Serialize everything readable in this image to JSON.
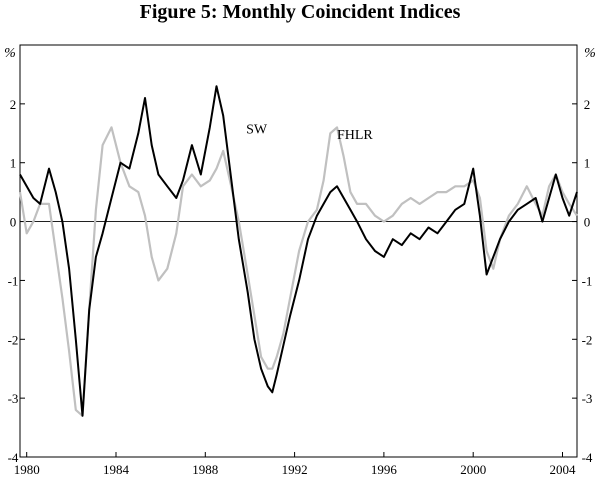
{
  "chart_data": {
    "type": "line",
    "title": "Figure 5: Monthly Coincident Indices",
    "ylabel_left": "%",
    "ylabel_right": "%",
    "ylim": [
      -4,
      3
    ],
    "yticks": [
      "2",
      "1",
      "0",
      "-1",
      "-2",
      "-3",
      "-4"
    ],
    "ytick_values": [
      2,
      1,
      0,
      -1,
      -2,
      -3,
      -4
    ],
    "xlim": [
      1979.7,
      2004.65
    ],
    "xticks": [
      "1980",
      "1984",
      "1988",
      "1992",
      "1996",
      "2000",
      "2004"
    ],
    "xtick_values": [
      1980,
      1984,
      1988,
      1992,
      1996,
      2000,
      2004
    ],
    "zero_line": true,
    "series": [
      {
        "name": "SW",
        "color": "#000000",
        "x": [
          1979.7,
          1980.0,
          1980.3,
          1980.6,
          1981.0,
          1981.3,
          1981.6,
          1981.9,
          1982.2,
          1982.5,
          1982.8,
          1983.1,
          1983.4,
          1983.8,
          1984.2,
          1984.6,
          1985.0,
          1985.3,
          1985.6,
          1985.9,
          1986.3,
          1986.7,
          1987.0,
          1987.4,
          1987.8,
          1988.2,
          1988.5,
          1988.8,
          1989.1,
          1989.5,
          1989.9,
          1990.2,
          1990.5,
          1990.8,
          1991.0,
          1991.2,
          1991.5,
          1991.8,
          1992.2,
          1992.6,
          1993.0,
          1993.3,
          1993.6,
          1993.9,
          1994.2,
          1994.5,
          1994.8,
          1995.2,
          1995.6,
          1996.0,
          1996.4,
          1996.8,
          1997.2,
          1997.6,
          1998.0,
          1998.4,
          1998.8,
          1999.2,
          1999.6,
          2000.0,
          2000.3,
          2000.6,
          2000.9,
          2001.2,
          2001.6,
          2002.0,
          2002.4,
          2002.8,
          2003.1,
          2003.4,
          2003.7,
          2004.0,
          2004.3,
          2004.65
        ],
        "values": [
          0.8,
          0.6,
          0.4,
          0.3,
          0.9,
          0.5,
          0.0,
          -0.8,
          -2.0,
          -3.3,
          -1.5,
          -0.6,
          -0.2,
          0.4,
          1.0,
          0.9,
          1.5,
          2.1,
          1.3,
          0.8,
          0.6,
          0.4,
          0.7,
          1.3,
          0.8,
          1.6,
          2.3,
          1.8,
          0.9,
          -0.3,
          -1.2,
          -2.0,
          -2.5,
          -2.8,
          -2.9,
          -2.6,
          -2.1,
          -1.6,
          -1.0,
          -0.3,
          0.1,
          0.3,
          0.5,
          0.6,
          0.4,
          0.2,
          0.0,
          -0.3,
          -0.5,
          -0.6,
          -0.3,
          -0.4,
          -0.2,
          -0.3,
          -0.1,
          -0.2,
          0.0,
          0.2,
          0.3,
          0.9,
          0.1,
          -0.9,
          -0.6,
          -0.3,
          0.0,
          0.2,
          0.3,
          0.4,
          0.0,
          0.4,
          0.8,
          0.4,
          0.1,
          0.5
        ]
      },
      {
        "name": "FHLR",
        "color": "#c0c0c0",
        "x": [
          1979.7,
          1980.0,
          1980.3,
          1980.6,
          1981.0,
          1981.3,
          1981.6,
          1981.9,
          1982.2,
          1982.5,
          1982.8,
          1983.1,
          1983.4,
          1983.8,
          1984.2,
          1984.6,
          1985.0,
          1985.3,
          1985.6,
          1985.9,
          1986.3,
          1986.7,
          1987.0,
          1987.4,
          1987.8,
          1988.2,
          1988.5,
          1988.8,
          1989.1,
          1989.5,
          1989.9,
          1990.2,
          1990.5,
          1990.8,
          1991.0,
          1991.2,
          1991.5,
          1991.8,
          1992.2,
          1992.6,
          1993.0,
          1993.3,
          1993.6,
          1993.9,
          1994.2,
          1994.5,
          1994.8,
          1995.2,
          1995.6,
          1996.0,
          1996.4,
          1996.8,
          1997.2,
          1997.6,
          1998.0,
          1998.4,
          1998.8,
          1999.2,
          1999.6,
          2000.0,
          2000.3,
          2000.6,
          2000.9,
          2001.2,
          2001.6,
          2002.0,
          2002.4,
          2002.8,
          2003.1,
          2003.4,
          2003.7,
          2004.0,
          2004.3,
          2004.65
        ],
        "values": [
          0.5,
          -0.2,
          0.0,
          0.3,
          0.3,
          -0.5,
          -1.3,
          -2.2,
          -3.2,
          -3.3,
          -1.5,
          0.2,
          1.3,
          1.6,
          1.0,
          0.6,
          0.5,
          0.1,
          -0.6,
          -1.0,
          -0.8,
          -0.2,
          0.6,
          0.8,
          0.6,
          0.7,
          0.9,
          1.2,
          0.7,
          0.0,
          -0.9,
          -1.6,
          -2.3,
          -2.5,
          -2.5,
          -2.3,
          -1.9,
          -1.3,
          -0.5,
          0.0,
          0.2,
          0.7,
          1.5,
          1.6,
          1.1,
          0.5,
          0.3,
          0.3,
          0.1,
          0.0,
          0.1,
          0.3,
          0.4,
          0.3,
          0.4,
          0.5,
          0.5,
          0.6,
          0.6,
          0.7,
          0.4,
          -0.5,
          -0.8,
          -0.3,
          0.1,
          0.3,
          0.6,
          0.3,
          0.1,
          0.6,
          0.8,
          0.5,
          0.3,
          0.1
        ]
      }
    ],
    "annotations": [
      {
        "text": "SW",
        "x": 1990.3,
        "y": 1.5
      },
      {
        "text": "FHLR",
        "x": 1994.7,
        "y": 1.4
      }
    ]
  }
}
